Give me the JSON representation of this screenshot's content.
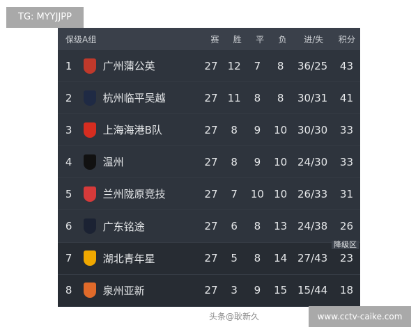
{
  "watermark_top": "TG: MYYJJPP",
  "watermark_bottom": "www.cctv-caike.com",
  "watermark_overlay": "头条@耿新久",
  "table": {
    "title": "保级A组",
    "columns": [
      "赛",
      "胜",
      "平",
      "负",
      "进/失",
      "积分"
    ],
    "relegation_label": "降级区",
    "rows": [
      {
        "rank": "1",
        "team": "广州蒲公英",
        "p": "27",
        "w": "12",
        "d": "7",
        "l": "8",
        "gd": "36/25",
        "pts": "43",
        "logo_color": "#c0392b"
      },
      {
        "rank": "2",
        "team": "杭州临平吴越",
        "p": "27",
        "w": "11",
        "d": "8",
        "l": "8",
        "gd": "30/31",
        "pts": "41",
        "logo_color": "#1f2a44"
      },
      {
        "rank": "3",
        "team": "上海海港B队",
        "p": "27",
        "w": "8",
        "d": "9",
        "l": "10",
        "gd": "30/30",
        "pts": "33",
        "logo_color": "#d62d20"
      },
      {
        "rank": "4",
        "team": "温州",
        "p": "27",
        "w": "8",
        "d": "9",
        "l": "10",
        "gd": "24/30",
        "pts": "33",
        "logo_color": "#111111"
      },
      {
        "rank": "5",
        "team": "兰州陇原竞技",
        "p": "27",
        "w": "7",
        "d": "10",
        "l": "10",
        "gd": "26/33",
        "pts": "31",
        "logo_color": "#d63a3a"
      },
      {
        "rank": "6",
        "team": "广东铭途",
        "p": "27",
        "w": "6",
        "d": "8",
        "l": "13",
        "gd": "24/38",
        "pts": "26",
        "logo_color": "#1b2233"
      },
      {
        "rank": "7",
        "team": "湖北青年星",
        "p": "27",
        "w": "5",
        "d": "8",
        "l": "14",
        "gd": "27/43",
        "pts": "23",
        "logo_color": "#f0a800"
      },
      {
        "rank": "8",
        "team": "泉州亚新",
        "p": "27",
        "w": "3",
        "d": "9",
        "l": "15",
        "gd": "15/44",
        "pts": "18",
        "logo_color": "#e06a2a"
      }
    ]
  }
}
